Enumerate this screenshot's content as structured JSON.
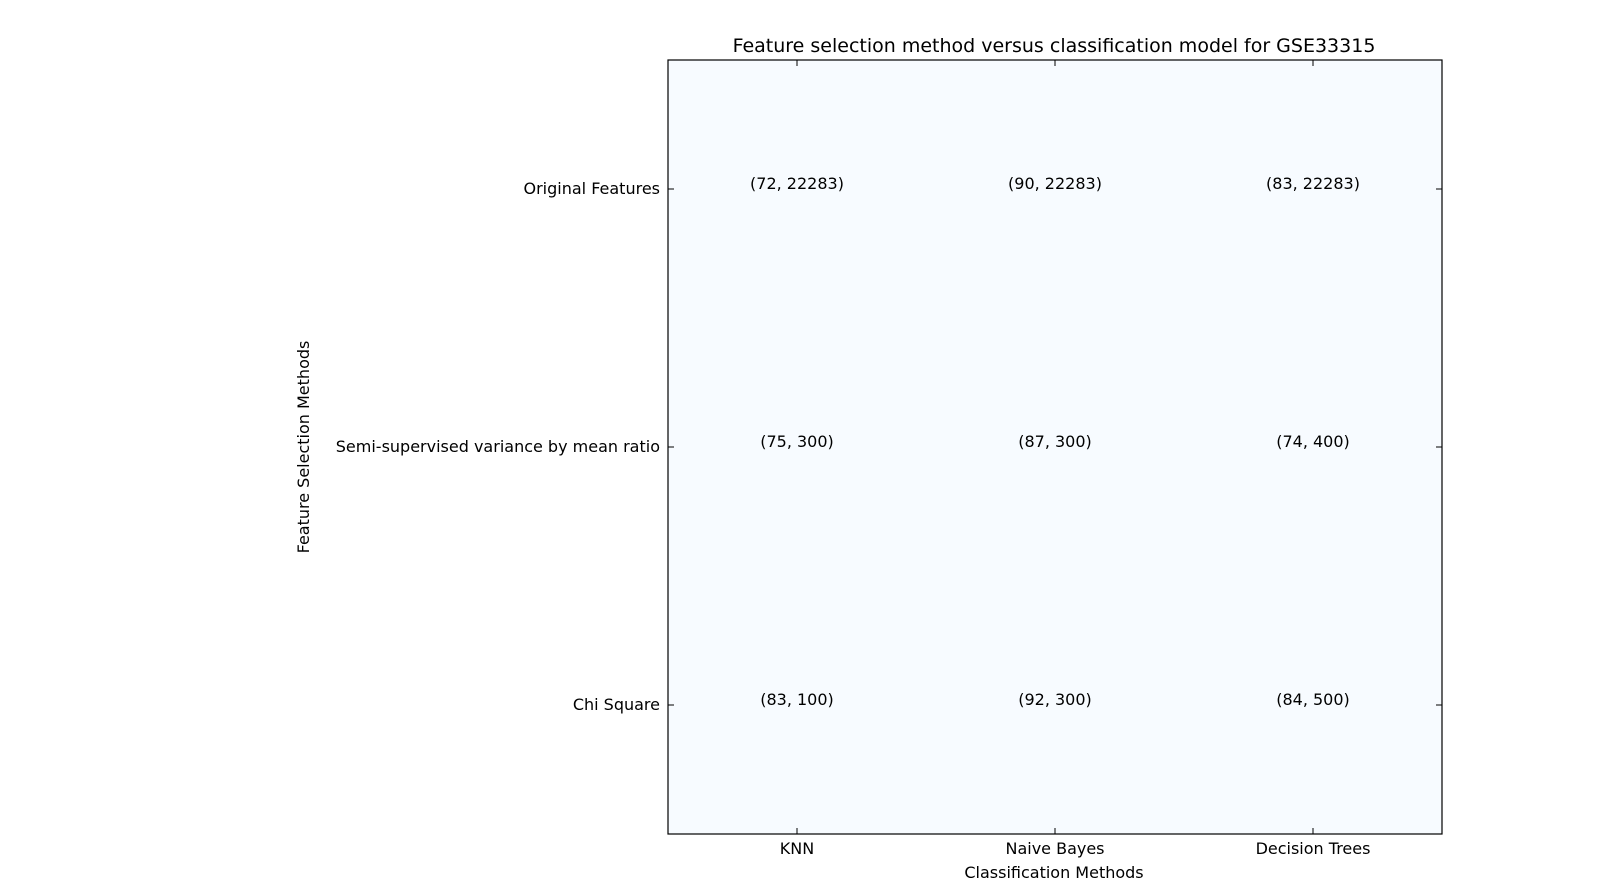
{
  "chart_data": {
    "type": "table",
    "title": "Feature selection method versus classification model for GSE33315",
    "xlabel": "Classification Methods",
    "ylabel": "Feature Selection Methods",
    "columns": [
      "KNN",
      "Naive Bayes",
      "Decision Trees"
    ],
    "rows": [
      "Original Features",
      "Semi-supervised variance by mean ratio",
      "Chi Square"
    ],
    "cells": [
      [
        "(72, 22283)",
        "(90, 22283)",
        "(83, 22283)"
      ],
      [
        "(75, 300)",
        "(87, 300)",
        "(74, 400)"
      ],
      [
        "(83, 100)",
        "(92, 300)",
        "(84, 500)"
      ]
    ],
    "values": [
      [
        [
          72,
          22283
        ],
        [
          90,
          22283
        ],
        [
          83,
          22283
        ]
      ],
      [
        [
          75,
          300
        ],
        [
          87,
          300
        ],
        [
          74,
          400
        ]
      ],
      [
        [
          83,
          100
        ],
        [
          92,
          300
        ],
        [
          84,
          500
        ]
      ]
    ],
    "grid": false,
    "background_color": "#f7fbff"
  }
}
